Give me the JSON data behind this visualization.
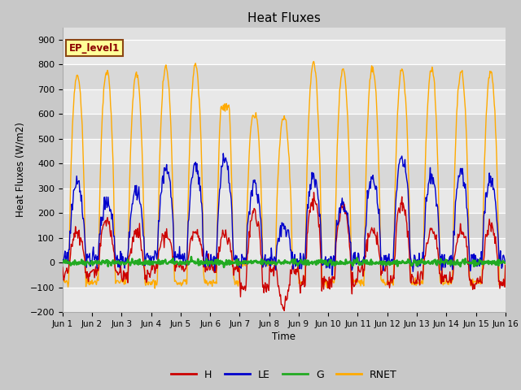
{
  "title": "Heat Fluxes",
  "ylabel": "Heat Fluxes (W/m2)",
  "xlabel": "Time",
  "ylim": [
    -200,
    950
  ],
  "yticks": [
    -200,
    -100,
    0,
    100,
    200,
    300,
    400,
    500,
    600,
    700,
    800,
    900
  ],
  "annotation": "EP_level1",
  "fig_bg": "#c8c8c8",
  "plot_bg_light": "#e8e8e8",
  "plot_bg_dark": "#d8d8d8",
  "colors": {
    "H": "#cc0000",
    "LE": "#0000cc",
    "G": "#22aa22",
    "RNET": "#ffaa00"
  },
  "tick_labels": [
    "Jun 1",
    "Jun 2",
    "Jun 3",
    "Jun 4",
    "Jun 5",
    "Jun 6",
    "Jun 7",
    "Jun 8",
    "Jun 9",
    "Jun 10",
    "Jun 11",
    "Jun 12",
    "Jun 13",
    "Jun 14",
    "Jun 15",
    "Jun 16"
  ]
}
